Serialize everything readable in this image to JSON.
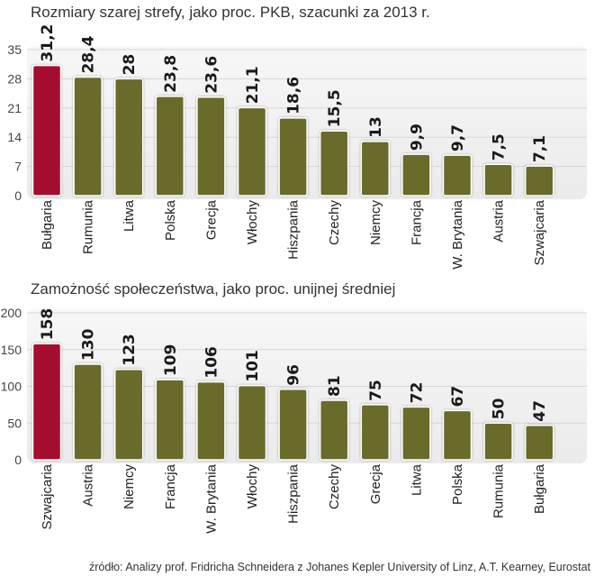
{
  "colors": {
    "highlight": "#a50e2d",
    "bar": "#6b6a2a",
    "plot_bg": "#f1f1f1",
    "grid": "#d6d6d6"
  },
  "source": "źródło: Analizy prof. Fridricha Schneidera z Johanes Kepler University of Linz, A.T. Kearney, Eurostat",
  "chart_data": [
    {
      "type": "bar",
      "title": "Rozmiary szarej strefy, jako proc. PKB, szacunki za 2013 r.",
      "categories": [
        "Bułgaria",
        "Rumunia",
        "Litwa",
        "Polska",
        "Grecja",
        "Włochy",
        "Hiszpania",
        "Czechy",
        "Niemcy",
        "Francja",
        "W. Brytania",
        "Austria",
        "Szwajcaria"
      ],
      "values": [
        31.2,
        28.4,
        28,
        23.8,
        23.6,
        21.1,
        18.6,
        15.5,
        13,
        9.9,
        9.7,
        7.5,
        7.1
      ],
      "value_labels": [
        "31,2",
        "28,4",
        "28",
        "23,8",
        "23,6",
        "21,1",
        "18,6",
        "15,5",
        "13",
        "9,9",
        "9,7",
        "7,5",
        "7,1"
      ],
      "highlight_index": 0,
      "yticks": [
        0,
        7,
        14,
        21,
        28,
        35
      ],
      "ylim": [
        0,
        35
      ],
      "xlabel": "",
      "ylabel": "",
      "grid": true
    },
    {
      "type": "bar",
      "title": "Zamożność społeczeństwa, jako proc. unijnej średniej",
      "categories": [
        "Szwajcaria",
        "Austria",
        "Niemcy",
        "Francja",
        "W. Brytania",
        "Włochy",
        "Hiszpania",
        "Czechy",
        "Grecja",
        "Litwa",
        "Polska",
        "Rumunia",
        "Bułgaria"
      ],
      "values": [
        158,
        130,
        123,
        109,
        106,
        101,
        96,
        81,
        75,
        72,
        67,
        50,
        47
      ],
      "value_labels": [
        "158",
        "130",
        "123",
        "109",
        "106",
        "101",
        "96",
        "81",
        "75",
        "72",
        "67",
        "50",
        "47"
      ],
      "highlight_index": 0,
      "yticks": [
        0,
        50,
        100,
        150,
        200
      ],
      "ylim": [
        0,
        200
      ],
      "xlabel": "",
      "ylabel": "",
      "grid": true
    }
  ]
}
